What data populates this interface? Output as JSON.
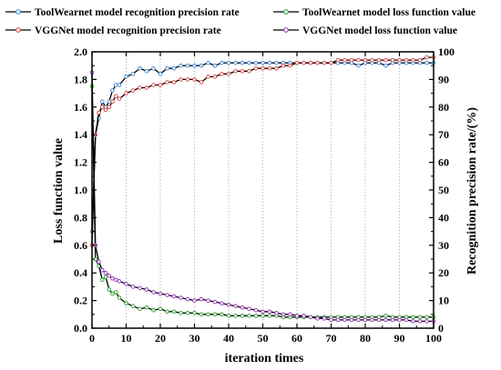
{
  "chart_data": {
    "type": "line",
    "xlabel": "iteration times",
    "ylabel_left": "Loss function value",
    "ylabel_right": "Recognition precision rate/(%)",
    "xlim": [
      0,
      100
    ],
    "ylim_left": [
      0,
      2.0
    ],
    "ylim_right": [
      0,
      100
    ],
    "x_ticks": [
      0,
      10,
      20,
      30,
      40,
      50,
      60,
      70,
      80,
      90,
      100
    ],
    "y_left_ticks": [
      0.0,
      0.2,
      0.4,
      0.6,
      0.8,
      1.0,
      1.2,
      1.4,
      1.6,
      1.8,
      2.0
    ],
    "y_right_ticks": [
      0,
      10,
      20,
      30,
      40,
      50,
      60,
      70,
      80,
      90,
      100
    ],
    "grid": "vertical-dotted",
    "legend_placement": "top",
    "series": [
      {
        "name": "ToolWearnet model recognition precision rate",
        "axis": "right",
        "line_color": "#000000",
        "marker_color": "#4a90d9",
        "marker": "circle",
        "x": [
          0,
          1,
          2,
          3,
          4,
          5,
          6,
          7,
          8,
          10,
          12,
          14,
          16,
          18,
          20,
          22,
          24,
          26,
          28,
          30,
          32,
          34,
          36,
          38,
          40,
          42,
          44,
          46,
          48,
          50,
          52,
          54,
          56,
          58,
          60,
          62,
          64,
          66,
          68,
          70,
          72,
          74,
          76,
          78,
          80,
          82,
          84,
          86,
          88,
          90,
          92,
          94,
          96,
          98,
          100
        ],
        "y": [
          35,
          70,
          76,
          82,
          80,
          82,
          86,
          88,
          88,
          91,
          92,
          94,
          93,
          94,
          92,
          94,
          94,
          95,
          95,
          95,
          95,
          96,
          95,
          96,
          96,
          96,
          96,
          96,
          96,
          96,
          96,
          96,
          96,
          96,
          96,
          96,
          96,
          96,
          96,
          96,
          96,
          96,
          96,
          95,
          96,
          96,
          96,
          95,
          96,
          96,
          96,
          96,
          96,
          96,
          96
        ]
      },
      {
        "name": "VGGNet model recognition precision rate",
        "axis": "right",
        "line_color": "#000000",
        "marker_color": "#e05050",
        "marker": "circle",
        "x": [
          0,
          1,
          2,
          3,
          4,
          5,
          6,
          7,
          8,
          10,
          12,
          14,
          16,
          18,
          20,
          22,
          24,
          26,
          28,
          30,
          32,
          34,
          36,
          38,
          40,
          42,
          44,
          46,
          48,
          50,
          52,
          54,
          56,
          58,
          60,
          62,
          64,
          66,
          68,
          70,
          72,
          74,
          76,
          78,
          80,
          82,
          84,
          86,
          88,
          90,
          92,
          94,
          96,
          98,
          100
        ],
        "y": [
          30,
          70,
          78,
          80,
          79,
          80,
          82,
          84,
          83,
          85,
          86,
          87,
          87,
          88,
          88,
          89,
          89,
          90,
          90,
          90,
          89,
          91,
          91,
          92,
          92,
          93,
          93,
          93,
          94,
          94,
          94,
          94,
          95,
          95,
          96,
          96,
          96,
          96,
          96,
          96,
          97,
          97,
          97,
          97,
          97,
          97,
          97,
          97,
          97,
          97,
          97,
          97,
          97,
          98,
          98
        ]
      },
      {
        "name": "ToolWearnet model loss function value",
        "axis": "left",
        "line_color": "#000000",
        "marker_color": "#3aa63a",
        "marker": "circle",
        "x": [
          0,
          1,
          2,
          3,
          4,
          5,
          6,
          7,
          8,
          10,
          12,
          14,
          16,
          18,
          20,
          22,
          24,
          26,
          28,
          30,
          32,
          34,
          36,
          38,
          40,
          42,
          44,
          46,
          48,
          50,
          52,
          54,
          56,
          58,
          60,
          62,
          64,
          66,
          68,
          70,
          72,
          74,
          76,
          78,
          80,
          82,
          84,
          86,
          88,
          90,
          92,
          94,
          96,
          98,
          100
        ],
        "y": [
          1.75,
          0.5,
          0.45,
          0.35,
          0.37,
          0.28,
          0.25,
          0.26,
          0.22,
          0.18,
          0.16,
          0.14,
          0.15,
          0.13,
          0.14,
          0.12,
          0.12,
          0.11,
          0.11,
          0.11,
          0.1,
          0.1,
          0.1,
          0.1,
          0.09,
          0.09,
          0.09,
          0.09,
          0.09,
          0.09,
          0.09,
          0.09,
          0.08,
          0.08,
          0.08,
          0.08,
          0.08,
          0.08,
          0.08,
          0.08,
          0.08,
          0.08,
          0.08,
          0.08,
          0.08,
          0.08,
          0.08,
          0.09,
          0.08,
          0.08,
          0.08,
          0.08,
          0.08,
          0.08,
          0.08
        ]
      },
      {
        "name": "VGGNet model loss function value",
        "axis": "left",
        "line_color": "#000000",
        "marker_color": "#a040c0",
        "marker": "circle",
        "x": [
          0,
          1,
          2,
          3,
          4,
          5,
          6,
          7,
          8,
          10,
          12,
          14,
          16,
          18,
          20,
          22,
          24,
          26,
          28,
          30,
          32,
          34,
          36,
          38,
          40,
          42,
          44,
          46,
          48,
          50,
          52,
          54,
          56,
          58,
          60,
          62,
          64,
          66,
          68,
          70,
          72,
          74,
          76,
          78,
          80,
          82,
          84,
          86,
          88,
          90,
          92,
          94,
          96,
          98,
          100
        ],
        "y": [
          1.85,
          0.6,
          0.48,
          0.42,
          0.4,
          0.38,
          0.36,
          0.35,
          0.34,
          0.32,
          0.3,
          0.29,
          0.28,
          0.26,
          0.25,
          0.24,
          0.23,
          0.22,
          0.21,
          0.2,
          0.21,
          0.2,
          0.19,
          0.18,
          0.17,
          0.16,
          0.15,
          0.14,
          0.13,
          0.12,
          0.12,
          0.11,
          0.1,
          0.1,
          0.09,
          0.09,
          0.08,
          0.07,
          0.07,
          0.06,
          0.06,
          0.06,
          0.06,
          0.06,
          0.06,
          0.06,
          0.06,
          0.06,
          0.06,
          0.06,
          0.06,
          0.05,
          0.05,
          0.05,
          0.05
        ]
      }
    ]
  }
}
